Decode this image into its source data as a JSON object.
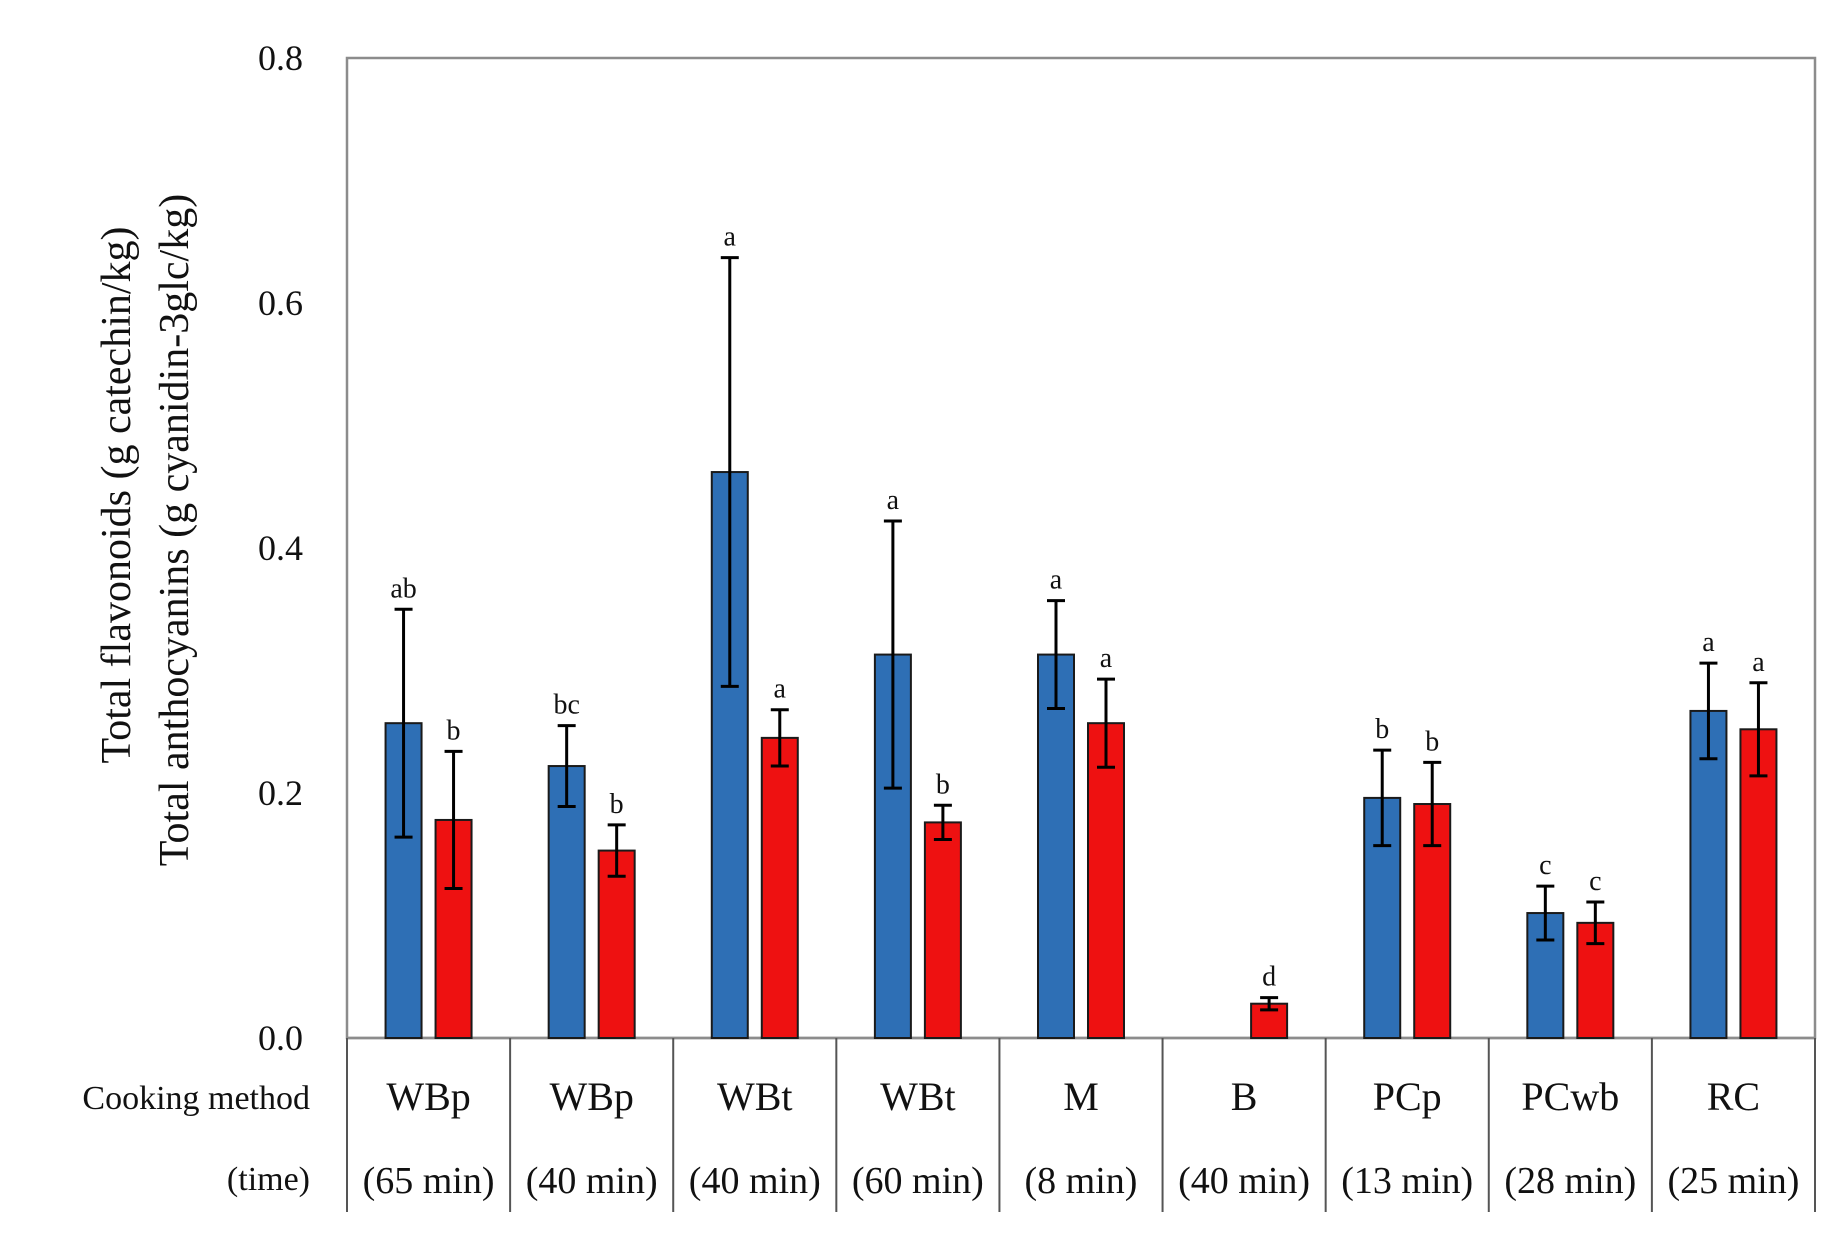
{
  "chart_data": {
    "type": "bar",
    "ylabel_lines": [
      "Total flavonoids (g catechin/kg)",
      "Total anthocyanins (g cyanidin-3glc/kg)"
    ],
    "ylim": [
      0,
      0.8
    ],
    "yticks": [
      "0.0",
      "0.2",
      "0.4",
      "0.6",
      "0.8"
    ],
    "ytick_values": [
      0.0,
      0.2,
      0.4,
      0.6,
      0.8
    ],
    "row_labels": {
      "method": "Cooking method",
      "time": "(time)"
    },
    "categories": [
      {
        "method": "WBp",
        "time": "(65 min)"
      },
      {
        "method": "WBp",
        "time": "(40 min)"
      },
      {
        "method": "WBt",
        "time": "(40 min)"
      },
      {
        "method": "WBt",
        "time": "(60 min)"
      },
      {
        "method": "M",
        "time": "(8 min)"
      },
      {
        "method": "B",
        "time": "(40 min)"
      },
      {
        "method": "PCp",
        "time": "(13 min)"
      },
      {
        "method": "PCwb",
        "time": "(28 min)"
      },
      {
        "method": "RC",
        "time": "(25 min)"
      }
    ],
    "series": [
      {
        "name": "Total flavonoids",
        "color": "#2e6fb5",
        "values": [
          0.257,
          0.222,
          0.462,
          0.313,
          0.313,
          null,
          0.196,
          0.102,
          0.267
        ],
        "errors": [
          0.093,
          0.033,
          0.175,
          0.109,
          0.044,
          null,
          0.039,
          0.022,
          0.039
        ],
        "labels": [
          "ab",
          "bc",
          "a",
          "a",
          "a",
          null,
          "b",
          "c",
          "a"
        ]
      },
      {
        "name": "Total anthocyanins",
        "color": "#ee1111",
        "values": [
          0.178,
          0.153,
          0.245,
          0.176,
          0.257,
          0.028,
          0.191,
          0.094,
          0.252
        ],
        "errors": [
          0.056,
          0.021,
          0.023,
          0.014,
          0.036,
          0.005,
          0.034,
          0.017,
          0.038
        ],
        "labels": [
          "b",
          "b",
          "a",
          "b",
          "a",
          "d",
          "b",
          "c",
          "a"
        ]
      }
    ]
  }
}
